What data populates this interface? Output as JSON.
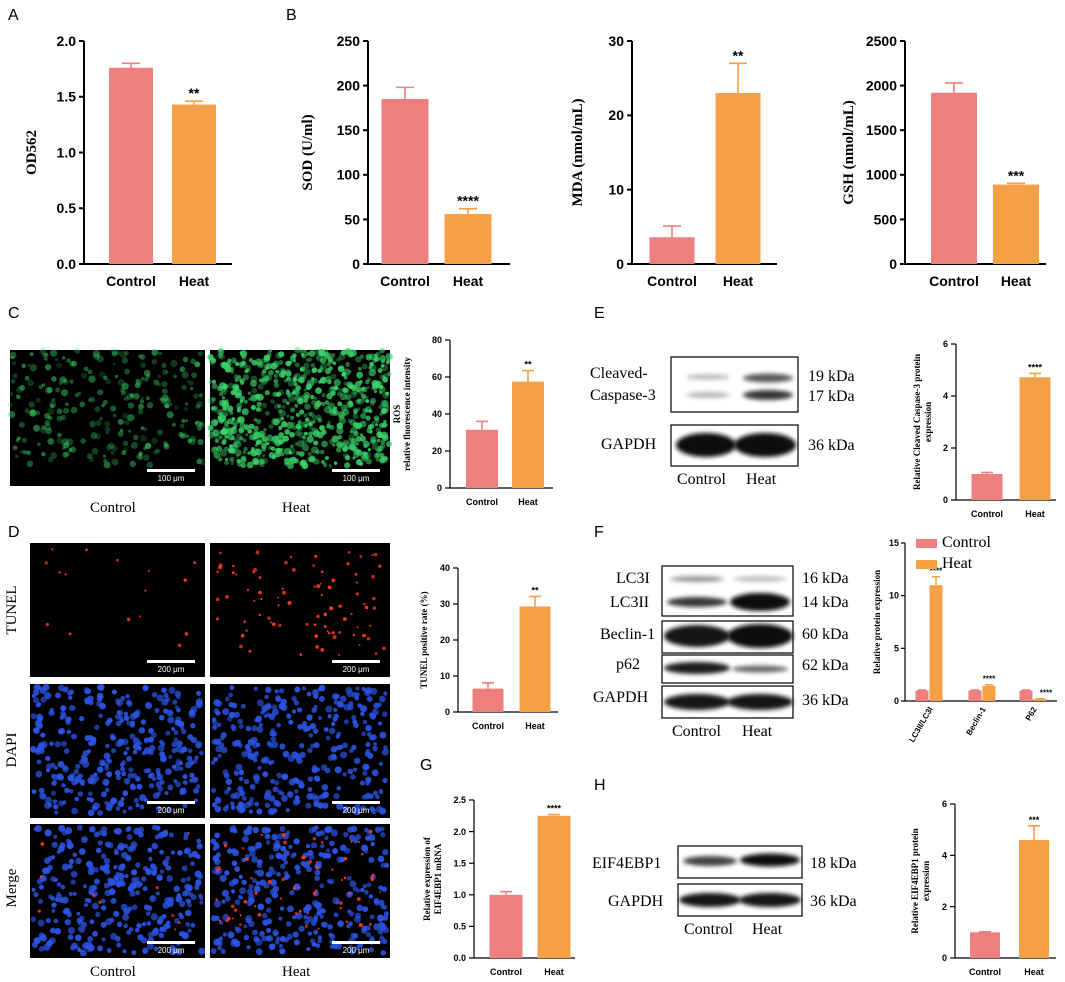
{
  "colors": {
    "control": "#ee7f7f",
    "heat": "#f3a046",
    "green_cell": "#3bd36a",
    "red_cell": "#ff3b22",
    "blue_cell": "#2b53e3",
    "band": "#151515"
  },
  "panel_letters": [
    "A",
    "B",
    "C",
    "D",
    "E",
    "F",
    "G",
    "H"
  ],
  "microscopy": {
    "captions": [
      "Control",
      "Heat"
    ],
    "row_labels": [
      "TUNEL",
      "DAPI",
      "Merge"
    ],
    "scale_ros": "100 μm",
    "scale_tunel": "200 μm"
  },
  "blots": {
    "E": {
      "bands": [
        "Cleaved-",
        "Caspase-3",
        "GAPDH"
      ],
      "kda": [
        "19 kDa",
        "17 kDa",
        "36 kDa"
      ],
      "lanes": [
        "Control",
        "Heat"
      ]
    },
    "F": {
      "bands": [
        "LC3I",
        "LC3II",
        "Beclin-1",
        "p62",
        "GAPDH"
      ],
      "kda": [
        "16 kDa",
        "14 kDa",
        "60 kDa",
        "62 kDa",
        "36 kDa"
      ],
      "lanes": [
        "Control",
        "Heat"
      ]
    },
    "H": {
      "bands": [
        "EIF4EBP1",
        "GAPDH"
      ],
      "kda": [
        "18 kDa",
        "36 kDa"
      ],
      "lanes": [
        "Control",
        "Heat"
      ]
    }
  },
  "chart_data": [
    {
      "id": "A",
      "type": "bar",
      "categories": [
        "Control",
        "Heat"
      ],
      "values": [
        1.76,
        1.43
      ],
      "errors": [
        0.04,
        0.03
      ],
      "ylabel": "OD562",
      "ylim": [
        0,
        2.0
      ],
      "yticks": [
        "0.0",
        "0.5",
        "1.0",
        "1.5",
        "2.0"
      ],
      "significance": [
        "",
        "**"
      ]
    },
    {
      "id": "B1",
      "type": "bar",
      "categories": [
        "Control",
        "Heat"
      ],
      "values": [
        185,
        56
      ],
      "errors": [
        13,
        6
      ],
      "ylabel": "SOD (U/ml)",
      "ylim": [
        0,
        250
      ],
      "yticks": [
        "0",
        "50",
        "100",
        "150",
        "200",
        "250"
      ],
      "significance": [
        "",
        "****"
      ]
    },
    {
      "id": "B2",
      "type": "bar",
      "categories": [
        "Control",
        "Heat"
      ],
      "values": [
        3.6,
        23
      ],
      "errors": [
        1.5,
        4
      ],
      "ylabel": "MDA (nmol/mL)",
      "ylim": [
        0,
        30
      ],
      "yticks": [
        "0",
        "10",
        "20",
        "30"
      ],
      "significance": [
        "",
        "**"
      ]
    },
    {
      "id": "B3",
      "type": "bar",
      "categories": [
        "Control",
        "Heat"
      ],
      "values": [
        1920,
        890
      ],
      "errors": [
        110,
        15
      ],
      "ylabel": "GSH (nmol/mL)",
      "ylim": [
        0,
        2500
      ],
      "yticks": [
        "0",
        "500",
        "1000",
        "1500",
        "2000",
        "2500"
      ],
      "significance": [
        "",
        "***"
      ]
    },
    {
      "id": "C",
      "type": "bar",
      "categories": [
        "Control",
        "Heat"
      ],
      "values": [
        31.5,
        57.5
      ],
      "errors": [
        4.5,
        6
      ],
      "ylabel": "ROS relative fluorescence intensity",
      "ylabel_lines": [
        "ROS",
        "relative fluorescence intensity"
      ],
      "ylim": [
        0,
        80
      ],
      "yticks": [
        "0",
        "20",
        "40",
        "60",
        "80"
      ],
      "significance": [
        "",
        "**"
      ]
    },
    {
      "id": "D",
      "type": "bar",
      "categories": [
        "Control",
        "Heat"
      ],
      "values": [
        6.5,
        29.3
      ],
      "errors": [
        1.6,
        2.8
      ],
      "ylabel": "TUNEL positive rate (%)",
      "ylim": [
        0,
        40
      ],
      "yticks": [
        "0",
        "10",
        "20",
        "30",
        "40"
      ],
      "significance": [
        "",
        "**"
      ]
    },
    {
      "id": "E",
      "type": "bar",
      "categories": [
        "Control",
        "Heat"
      ],
      "values": [
        1.0,
        4.72
      ],
      "errors": [
        0.06,
        0.15
      ],
      "ylabel": "Relative Cleaved Caspase-3 protein expression",
      "ylabel_lines": [
        "Relative Cleaved Caspase-3 protein",
        "expression"
      ],
      "ylim": [
        0,
        6
      ],
      "yticks": [
        "0",
        "2",
        "4",
        "6"
      ],
      "significance": [
        "",
        "****"
      ]
    },
    {
      "id": "F",
      "type": "bar",
      "categories": [
        "LC3II/LC3I",
        "Beclin-1",
        "P62"
      ],
      "series": [
        {
          "name": "Control",
          "values": [
            1.0,
            1.0,
            1.0
          ],
          "errors": [
            0.05,
            0.05,
            0.05
          ]
        },
        {
          "name": "Heat",
          "values": [
            11.0,
            1.45,
            0.2
          ],
          "errors": [
            0.8,
            0.1,
            0.03
          ]
        }
      ],
      "ylabel": "Relative protein expression",
      "ylim": [
        0,
        15
      ],
      "yticks": [
        "0",
        "5",
        "10",
        "15"
      ],
      "significance": [
        "****",
        "****",
        "****"
      ],
      "legend": "top-left"
    },
    {
      "id": "G",
      "type": "bar",
      "categories": [
        "Control",
        "Heat"
      ],
      "values": [
        1.0,
        2.25
      ],
      "errors": [
        0.05,
        0.02
      ],
      "ylabel": "Relative expression of EIF4EBP1 mRNA",
      "ylabel_lines": [
        "Relative expression of",
        "EIF4EBP1 mRNA"
      ],
      "ylim": [
        0,
        2.5
      ],
      "yticks": [
        "0.0",
        "0.5",
        "1.0",
        "1.5",
        "2.0",
        "2.5"
      ],
      "significance": [
        "",
        "****"
      ]
    },
    {
      "id": "H",
      "type": "bar",
      "categories": [
        "Control",
        "Heat"
      ],
      "values": [
        1.0,
        4.6
      ],
      "errors": [
        0.02,
        0.55
      ],
      "ylabel": "Relative EIF4EBP1 protein expression",
      "ylabel_lines": [
        "Relative EIF4EBP1 protein",
        "expression"
      ],
      "ylim": [
        0,
        6
      ],
      "yticks": [
        "0",
        "2",
        "4",
        "6"
      ],
      "significance": [
        "",
        "***"
      ]
    }
  ]
}
